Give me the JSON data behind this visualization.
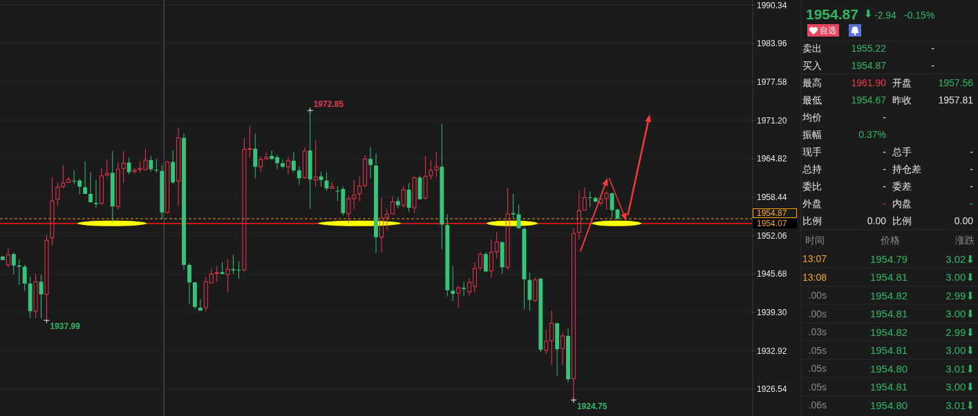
{
  "chart_data": [
    {
      "type": "candlestick",
      "categories": [
        null,
        null,
        null,
        null,
        null,
        null,
        null,
        null,
        null,
        null,
        null,
        null,
        null,
        null,
        null,
        null,
        null,
        null,
        null,
        null,
        null,
        null,
        null,
        null,
        null,
        null,
        null,
        null,
        null,
        null,
        null,
        null,
        null,
        null,
        null,
        null,
        null,
        null,
        null,
        null,
        null,
        null,
        null,
        null,
        null,
        null,
        null,
        null,
        null,
        null,
        null,
        null,
        null,
        null,
        null,
        null,
        null,
        null,
        null,
        null,
        null,
        null,
        null,
        null,
        null,
        null,
        null,
        null,
        null,
        null,
        null,
        null,
        null,
        null,
        null,
        null,
        null,
        null,
        null,
        null,
        null,
        null,
        null,
        null,
        null,
        null,
        null,
        null,
        null,
        null,
        null,
        null,
        null,
        null,
        null,
        null,
        null,
        null,
        null,
        null,
        null,
        null,
        null,
        null,
        null,
        null,
        null,
        null,
        null,
        null,
        null,
        null,
        null,
        null,
        null,
        null,
        null,
        null,
        null,
        null,
        null,
        null,
        null,
        null,
        null,
        null,
        null,
        null,
        null,
        null,
        null,
        null,
        null,
        null,
        null,
        null,
        null
      ],
      "ohlc": [
        [
          1948.6,
          1948.6,
          1948.0,
          1948.0
        ],
        [
          1947.2,
          1950.0,
          1946.8,
          1948.9
        ],
        [
          1949.0,
          1949.3,
          1945.6,
          1947.1
        ],
        [
          1947.1,
          1948.1,
          1943.9,
          1946.9
        ],
        [
          1946.9,
          1947.2,
          1942.9,
          1944.1
        ],
        [
          1944.1,
          1945.3,
          1938.4,
          1939.5
        ],
        [
          1939.5,
          1945.7,
          1938.4,
          1944.4
        ],
        [
          1944.4,
          1945.6,
          1938.3,
          1942.3
        ],
        [
          1942.3,
          1952.2,
          1937.99,
          1951.3
        ],
        [
          1951.7,
          1961.7,
          1950.5,
          1957.8
        ],
        [
          1958.1,
          1960.9,
          1957.0,
          1960.1
        ],
        [
          1960.2,
          1963.8,
          1959.9,
          1960.8
        ],
        [
          1960.9,
          1961.8,
          1960.9,
          1961.4
        ],
        [
          1961.2,
          1962.9,
          1960.6,
          1961.1
        ],
        [
          1961.2,
          1961.5,
          1958.9,
          1960.2
        ],
        [
          1960.1,
          1964.4,
          1958.9,
          1959.0
        ],
        [
          1959.0,
          1962.6,
          1957.6,
          1957.6
        ],
        [
          1957.5,
          1961.3,
          1956.7,
          1957.3
        ],
        [
          1957.4,
          1963.3,
          1957.2,
          1962.0
        ],
        [
          1962.1,
          1964.7,
          1961.8,
          1962.4
        ],
        [
          1962.5,
          1966.1,
          1954.2,
          1956.9
        ],
        [
          1956.9,
          1964.2,
          1956.4,
          1963.1
        ],
        [
          1963.2,
          1966.2,
          1960.8,
          1964.1
        ],
        [
          1964.2,
          1965.0,
          1962.2,
          1962.6
        ],
        [
          1962.7,
          1963.3,
          1962.4,
          1962.9
        ],
        [
          1963.0,
          1964.4,
          1962.5,
          1963.2
        ],
        [
          1963.0,
          1966.5,
          1963.0,
          1964.6
        ],
        [
          1964.6,
          1965.3,
          1962.7,
          1963.1
        ],
        [
          1963.0,
          1964.8,
          1962.5,
          1962.9
        ],
        [
          1962.8,
          1963.8,
          1954.8,
          1955.9
        ],
        [
          1955.9,
          1964.4,
          1955.7,
          1964.3
        ],
        [
          1964.3,
          1966.2,
          1960.7,
          1960.9
        ],
        [
          1961.1,
          1970.0,
          1957.0,
          1968.3
        ],
        [
          1968.3,
          1969.0,
          1946.4,
          1947.2
        ],
        [
          1947.2,
          1947.5,
          1940.7,
          1944.3
        ],
        [
          1944.3,
          1944.3,
          1939.9,
          1940.2
        ],
        [
          1940.1,
          1941.5,
          1939.6,
          1939.6
        ],
        [
          1940.1,
          1945.2,
          1939.5,
          1944.4
        ],
        [
          1944.2,
          1946.5,
          1944.2,
          1945.7
        ],
        [
          1945.8,
          1947.0,
          1944.3,
          1945.9
        ],
        [
          1946.0,
          1947.7,
          1945.6,
          1945.7
        ],
        [
          1945.6,
          1948.1,
          1942.6,
          1946.5
        ],
        [
          1946.5,
          1948.9,
          1945.7,
          1946.3
        ],
        [
          1946.4,
          1947.8,
          1944.9,
          1946.3
        ],
        [
          1946.4,
          1968.3,
          1946.1,
          1966.4
        ],
        [
          1966.4,
          1970.2,
          1965.0,
          1966.5
        ],
        [
          1966.5,
          1969.0,
          1961.6,
          1963.5
        ],
        [
          1963.5,
          1965.2,
          1962.7,
          1964.7
        ],
        [
          1964.8,
          1965.9,
          1964.7,
          1965.1
        ],
        [
          1965.3,
          1966.2,
          1964.7,
          1964.8
        ],
        [
          1965.1,
          1965.5,
          1963.1,
          1964.1
        ],
        [
          1964.1,
          1964.7,
          1963.2,
          1963.5
        ],
        [
          1963.5,
          1965.2,
          1962.2,
          1964.5
        ],
        [
          1964.5,
          1965.9,
          1962.6,
          1962.9
        ],
        [
          1962.9,
          1963.6,
          1960.5,
          1961.6
        ],
        [
          1961.7,
          1966.7,
          1961.5,
          1966.1
        ],
        [
          1966.2,
          1972.85,
          1956.5,
          1961.4
        ],
        [
          1961.3,
          1967.9,
          1960.2,
          1961.8
        ],
        [
          1961.9,
          1962.7,
          1960.2,
          1961.3
        ],
        [
          1961.2,
          1962.6,
          1959.5,
          1959.9
        ],
        [
          1959.9,
          1961.0,
          1959.9,
          1960.2
        ],
        [
          1959.5,
          1960.3,
          1957.8,
          1959.4
        ],
        [
          1959.8,
          1960.2,
          1955.4,
          1955.8
        ],
        [
          1955.7,
          1958.7,
          1954.2,
          1958.2
        ],
        [
          1958.2,
          1961.3,
          1956.5,
          1958.8
        ],
        [
          1959.0,
          1962.0,
          1957.8,
          1960.3
        ],
        [
          1960.4,
          1965.4,
          1960.1,
          1964.8
        ],
        [
          1964.8,
          1966.7,
          1961.6,
          1963.8
        ],
        [
          1963.7,
          1965.7,
          1949.2,
          1951.8
        ],
        [
          1951.8,
          1958.4,
          1949.3,
          1955.0
        ],
        [
          1955.1,
          1956.5,
          1952.9,
          1955.6
        ],
        [
          1955.7,
          1958.6,
          1955.7,
          1957.7
        ],
        [
          1957.8,
          1958.4,
          1956.6,
          1957.1
        ],
        [
          1957.1,
          1960.3,
          1956.7,
          1959.7
        ],
        [
          1959.7,
          1960.8,
          1956.0,
          1956.7
        ],
        [
          1956.7,
          1961.9,
          1955.8,
          1961.7
        ],
        [
          1961.7,
          1962.0,
          1958.1,
          1958.1
        ],
        [
          1958.3,
          1965.2,
          1958.1,
          1961.9
        ],
        [
          1962.0,
          1964.5,
          1961.4,
          1962.9
        ],
        [
          1963.0,
          1966.0,
          1961.8,
          1963.5
        ],
        [
          1963.5,
          1970.6,
          1949.8,
          1953.9
        ],
        [
          1953.8,
          1955.6,
          1942.0,
          1943.0
        ],
        [
          1942.9,
          1947.0,
          1941.2,
          1942.4
        ],
        [
          1942.5,
          1943.7,
          1940.0,
          1943.4
        ],
        [
          1943.4,
          1944.4,
          1942.0,
          1943.2
        ],
        [
          1942.7,
          1945.0,
          1942.1,
          1944.3
        ],
        [
          1943.6,
          1947.6,
          1942.6,
          1946.6
        ],
        [
          1946.7,
          1949.2,
          1946.2,
          1949.0
        ],
        [
          1949.0,
          1949.3,
          1946.0,
          1946.1
        ],
        [
          1946.2,
          1951.4,
          1945.1,
          1949.3
        ],
        [
          1949.4,
          1952.7,
          1948.3,
          1951.0
        ],
        [
          1951.0,
          1951.0,
          1945.7,
          1946.8
        ],
        [
          1946.8,
          1960.0,
          1946.4,
          1955.7
        ],
        [
          1955.8,
          1959.0,
          1954.9,
          1955.6
        ],
        [
          1955.6,
          1957.2,
          1953.2,
          1953.3
        ],
        [
          1953.2,
          1953.4,
          1939.9,
          1944.8
        ],
        [
          1944.7,
          1945.9,
          1939.6,
          1941.4
        ],
        [
          1941.3,
          1945.1,
          1941.0,
          1944.7
        ],
        [
          1944.9,
          1945.1,
          1932.7,
          1933.1
        ],
        [
          1933.0,
          1936.4,
          1932.4,
          1934.5
        ],
        [
          1934.6,
          1939.6,
          1930.6,
          1937.5
        ],
        [
          1937.5,
          1937.6,
          1928.8,
          1933.2
        ],
        [
          1933.3,
          1935.9,
          1930.6,
          1935.4
        ],
        [
          1935.4,
          1936.6,
          1927.7,
          1928.2
        ],
        [
          1928.3,
          1953.3,
          1924.75,
          1952.4
        ],
        [
          1952.6,
          1959.5,
          1951.3,
          1956.2
        ],
        [
          1956.3,
          1960.0,
          1956.3,
          1958.4
        ],
        [
          1958.4,
          1959.4,
          1956.8,
          1958.3
        ],
        [
          1958.3,
          1958.6,
          1957.6,
          1957.7
        ],
        [
          1957.5,
          1958.1,
          1957.0,
          1958.1
        ],
        [
          1958.2,
          1959.4,
          1956.4,
          1959.1
        ],
        [
          1959.1,
          1959.2,
          1955.1,
          1956.3
        ],
        [
          1956.4,
          1956.5,
          1954.7,
          1954.9
        ],
        null,
        null,
        null,
        null,
        null,
        null,
        null,
        null,
        null,
        null,
        null,
        null,
        null,
        null,
        null,
        null,
        null,
        null,
        null,
        null,
        null,
        null,
        null,
        null
      ],
      "colors": [
        "#36c37a",
        "#f5364f",
        "#36c37a",
        "#36c37a",
        "#36c37a",
        "#36c37a",
        "#f5364f",
        "#36c37a",
        "#f5364f",
        "#f5364f",
        "#f5364f",
        "#f5364f",
        "#f5364f",
        "#36c37a",
        "#36c37a",
        "#36c37a",
        "#36c37a",
        "#36c37a",
        "#f5364f",
        "#f5364f",
        "#36c37a",
        "#f5364f",
        "#f5364f",
        "#36c37a",
        "#f5364f",
        "#f5364f",
        "#f5364f",
        "#36c37a",
        "#36c37a",
        "#36c37a",
        "#f5364f",
        "#36c37a",
        "#f5364f",
        "#36c37a",
        "#36c37a",
        "#36c37a",
        "#36c37a",
        "#f5364f",
        "#f5364f",
        "#f5364f",
        "#36c37a",
        "#f5364f",
        "#36c37a",
        "#36c37a",
        "#f5364f",
        "#f5364f",
        "#36c37a",
        "#f5364f",
        "#f5364f",
        "#36c37a",
        "#36c37a",
        "#36c37a",
        "#f5364f",
        "#36c37a",
        "#36c37a",
        "#f5364f",
        "#36c37a",
        "#f5364f",
        "#36c37a",
        "#36c37a",
        "#f5364f",
        "#36c37a",
        "#36c37a",
        "#f5364f",
        "#f5364f",
        "#f5364f",
        "#f5364f",
        "#36c37a",
        "#36c37a",
        "#f5364f",
        "#f5364f",
        "#f5364f",
        "#36c37a",
        "#f5364f",
        "#36c37a",
        "#f5364f",
        "#36c37a",
        "#f5364f",
        "#f5364f",
        "#f5364f",
        "#36c37a",
        "#36c37a",
        "#36c37a",
        "#f5364f",
        "#36c37a",
        "#f5364f",
        "#f5364f",
        "#f5364f",
        "#36c37a",
        "#f5364f",
        "#f5364f",
        "#36c37a",
        "#f5364f",
        "#36c37a",
        "#36c37a",
        "#36c37a",
        "#36c37a",
        "#f5364f",
        "#36c37a",
        "#f5364f",
        "#f5364f",
        "#36c37a",
        "#f5364f",
        "#36c37a",
        "#f5364f",
        "#f5364f",
        "#f5364f",
        "#36c37a",
        "#36c37a",
        "#f5364f",
        "#f5364f",
        "#36c37a",
        "#36c37a",
        null,
        null,
        null,
        null,
        null,
        null,
        null,
        null,
        null,
        null,
        null,
        null,
        null,
        null,
        null,
        null,
        null,
        null,
        null,
        null,
        null,
        null,
        null,
        null
      ],
      "ylim": [
        1922.1,
        1991.2
      ],
      "yticks": [
        1926.54,
        1932.92,
        {
          "value": 1939.3,
          "label": "1939.30"
        },
        1945.68,
        1952.06,
        1958.44,
        1964.82,
        {
          "value": 1971.2,
          "label": "1971.20"
        },
        1977.58,
        1983.96,
        1990.34
      ],
      "grid": "y",
      "tick_labels": "y",
      "ref_lines": [
        {
          "axis": "y",
          "value": 1954.87,
          "label": "1954.87",
          "color": "#ff9f1c",
          "line_style": "dashed"
        },
        {
          "axis": "y",
          "value": 1954.07,
          "label": "1954.07",
          "color": "#ff1a1a",
          "line_style": "solid"
        }
      ],
      "annotations": [
        "1972.85",
        "1937.99",
        "1924.75"
      ]
    },
    {
      "type": "other",
      "annotations": [
        "1954.87",
        "⬇",
        "-2.94",
        "-0.15%",
        "自选",
        "卖出",
        "1955.22",
        "-",
        "买入",
        "1954.87",
        "-",
        "最高",
        "1961.90",
        "开盘",
        "1957.56",
        "最低",
        "1954.67",
        "昨收",
        "1957.81",
        "均价",
        "-",
        "振幅",
        "0.37%",
        "现手",
        "-",
        "总手",
        "-",
        "总持",
        "-",
        "持仓差",
        "-",
        "委比",
        "-",
        "委差",
        "-",
        "外盘",
        "-",
        "内盘",
        "-",
        "比例",
        "0.00",
        "比例",
        "0.00",
        "时间",
        "价格",
        "涨跌",
        "13:07",
        "1954.79",
        "3.02⬇",
        "13:08",
        "1954.81",
        "3.00⬇",
        ".00s",
        "1954.82",
        "2.99⬇",
        ".00s",
        "1954.81",
        "3.00⬇",
        ".03s",
        "1954.82",
        "2.99⬇",
        ".05s",
        "1954.81",
        "3.00⬇",
        ".05s",
        "1954.80",
        "3.01⬇",
        ".05s",
        "1954.81",
        "3.00⬇",
        ".06s",
        "1954.80",
        "3.01⬇"
      ],
      "colors": [
        "#2fb865",
        "#2fb865",
        "#2fb865",
        "#2fb865",
        "#ffffff",
        "#e6e6e6",
        "#2fb865",
        "#e6e6e6",
        "#e6e6e6",
        "#2fb865",
        "#e6e6e6",
        "#e6e6e6",
        "#ef3b4f",
        "#e6e6e6",
        "#2fb865",
        "#e6e6e6",
        "#2fb865",
        "#e6e6e6",
        "#e6e6e6",
        "#e6e6e6",
        "#e6e6e6",
        "#e6e6e6",
        "#2fb865",
        "#e6e6e6",
        "#e6e6e6",
        "#e6e6e6",
        "#e6e6e6",
        "#e6e6e6",
        "#e6e6e6",
        "#e6e6e6",
        "#e6e6e6",
        "#e6e6e6",
        "#e6e6e6",
        "#e6e6e6",
        "#e6e6e6",
        "#e6e6e6",
        "#ef3b4f",
        "#e6e6e6",
        "#2fb865",
        "#e6e6e6",
        "#e6e6e6",
        "#e6e6e6",
        "#e6e6e6",
        "#8a8a8a",
        "#8a8a8a",
        "#8a8a8a",
        "#f5a623",
        "#2fb865",
        "#2fb865",
        "#f5a623",
        "#2fb865",
        "#2fb865",
        "#8a8a8a",
        "#2fb865",
        "#2fb865",
        "#8a8a8a",
        "#2fb865",
        "#2fb865",
        "#8a8a8a",
        "#2fb865",
        "#2fb865",
        "#8a8a8a",
        "#2fb865",
        "#2fb865",
        "#8a8a8a",
        "#2fb865",
        "#2fb865",
        "#8a8a8a",
        "#2fb865",
        "#2fb865",
        "#8a8a8a",
        "#2fb865",
        "#2fb865"
      ]
    }
  ]
}
